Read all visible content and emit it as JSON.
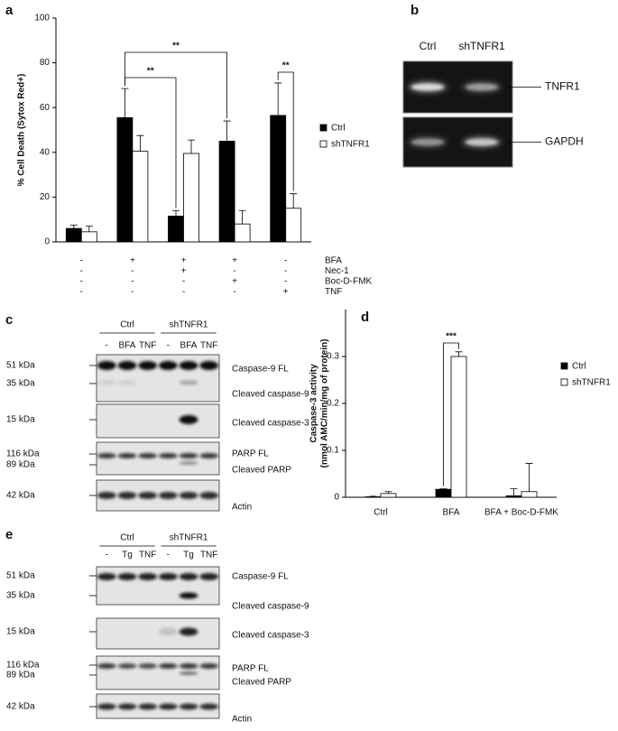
{
  "panel_labels": [
    "a",
    "b",
    "c",
    "d",
    "e"
  ],
  "chart_data": [
    {
      "type": "bar",
      "ylabel": [
        "% Cell Death (Sytox Red+)"
      ],
      "ylim": [
        0,
        100
      ],
      "yticks": [
        0,
        20,
        40,
        60,
        80,
        100
      ],
      "series": [
        {
          "name": "Ctrl",
          "color": "#000000",
          "values": [
            6,
            55.5,
            11.5,
            45,
            56.5
          ],
          "errors": [
            1.5,
            13,
            2.5,
            9,
            14.5
          ]
        },
        {
          "name": "shTNFR1",
          "color": "#ffffff",
          "values": [
            4.5,
            40.5,
            39.5,
            8,
            15
          ],
          "errors": [
            2.5,
            7,
            6,
            6,
            6.5
          ]
        }
      ],
      "treatments": [
        {
          "name": "BFA",
          "signs": [
            "-",
            "+",
            "+",
            "+",
            "-"
          ]
        },
        {
          "name": "Nec-1",
          "signs": [
            "-",
            "-",
            "+",
            "-",
            "-"
          ]
        },
        {
          "name": "Boc-D-FMK",
          "signs": [
            "-",
            "-",
            "-",
            "+",
            "-"
          ]
        },
        {
          "name": "TNF",
          "signs": [
            "-",
            "-",
            "-",
            "-",
            "+"
          ]
        }
      ],
      "annotations": [
        "**",
        "**",
        "**"
      ]
    },
    {
      "type": "bar",
      "ylabel": [
        "Caspase-3 activity",
        "(nmol AMC/min/mg of protein)"
      ],
      "ylim": [
        0,
        0.4
      ],
      "yticks": [
        0,
        0.1,
        0.2,
        0.3
      ],
      "categories": [
        "Ctrl",
        "BFA",
        "BFA + Boc-D-FMK"
      ],
      "series": [
        {
          "name": "Ctrl",
          "color": "#000000",
          "values": [
            0.001,
            0.017,
            0.003
          ],
          "errors": [
            0.001,
            0.001,
            0.015
          ]
        },
        {
          "name": "shTNFR1",
          "color": "#ffffff",
          "values": [
            0.008,
            0.3,
            0.012
          ],
          "errors": [
            0.004,
            0.01,
            0.06
          ]
        }
      ],
      "annotations": [
        "***"
      ]
    }
  ],
  "gel_b": {
    "lanes": [
      "Ctrl",
      "shTNFR1"
    ],
    "bands": [
      "TNFR1",
      "GAPDH"
    ]
  },
  "blot_c": {
    "groups": [
      "Ctrl",
      "shTNFR1"
    ],
    "lanes": [
      "-",
      "BFA",
      "TNF",
      "-",
      "BFA",
      "TNF"
    ],
    "markers": [
      "51 kDa",
      "35 kDa",
      "15 kDa",
      "116 kDa",
      "89 kDa",
      "42 kDa"
    ],
    "proteins": [
      "Caspase-9 FL",
      "Cleaved caspase-9",
      "Cleaved caspase-3",
      "PARP FL",
      "Cleaved PARP",
      "Actin"
    ]
  },
  "blot_e": {
    "groups": [
      "Ctrl",
      "shTNFR1"
    ],
    "lanes": [
      "-",
      "Tg",
      "TNF",
      "-",
      "Tg",
      "TNF"
    ],
    "markers": [
      "51 kDa",
      "35 kDa",
      "15 kDa",
      "116 kDa",
      "89 kDa",
      "42 kDa"
    ],
    "proteins": [
      "Caspase-9 FL",
      "Cleaved caspase-9",
      "Cleaved caspase-3",
      "PARP FL",
      "Cleaved PARP",
      "Actin"
    ]
  }
}
